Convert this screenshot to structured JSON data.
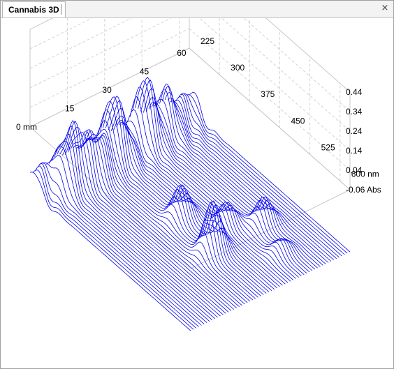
{
  "tab": {
    "title": "Cannabis 3D",
    "close_glyph": "×"
  },
  "chart_data": {
    "type": "area",
    "subtype": "3d-waterfall",
    "title": "",
    "xlabel_unit": "mm",
    "ylabel_unit": "nm",
    "zlabel_unit": "Abs",
    "x_ticks": [
      "0 mm",
      "15",
      "30",
      "45",
      "60"
    ],
    "y_ticks": [
      "225",
      "300",
      "375",
      "450",
      "525",
      "600 nm"
    ],
    "z_ticks": [
      "0.44",
      "0.34",
      "0.24",
      "0.14",
      "0.04",
      "-0.06 Abs"
    ],
    "xlim": [
      0,
      64
    ],
    "ylim": [
      200,
      600
    ],
    "zlim": [
      -0.06,
      0.44
    ],
    "grid": true,
    "line_color": "#0000ee",
    "trace_count": 60,
    "peaks": [
      {
        "x_mm": 8,
        "nm": 240,
        "abs": 0.17
      },
      {
        "x_mm": 12,
        "nm": 235,
        "abs": 0.2
      },
      {
        "x_mm": 16,
        "nm": 240,
        "abs": 0.16
      },
      {
        "x_mm": 20,
        "nm": 245,
        "abs": 0.15
      },
      {
        "x_mm": 24,
        "nm": 240,
        "abs": 0.11
      },
      {
        "x_mm": 29,
        "nm": 230,
        "abs": 0.24
      },
      {
        "x_mm": 33,
        "nm": 235,
        "abs": 0.12
      },
      {
        "x_mm": 42,
        "nm": 225,
        "abs": 0.19
      },
      {
        "x_mm": 45,
        "nm": 230,
        "abs": 0.12
      },
      {
        "x_mm": 52,
        "nm": 225,
        "abs": 0.13
      },
      {
        "x_mm": 28,
        "nm": 480,
        "abs": 0.16
      },
      {
        "x_mm": 30,
        "nm": 470,
        "abs": 0.1
      },
      {
        "x_mm": 31,
        "nm": 382,
        "abs": 0.09
      },
      {
        "x_mm": 30,
        "nm": 392,
        "abs": 0.07
      },
      {
        "x_mm": 40,
        "nm": 440,
        "abs": 0.1
      },
      {
        "x_mm": 50,
        "nm": 472,
        "abs": 0.12
      },
      {
        "x_mm": 46,
        "nm": 540,
        "abs": 0.06
      }
    ]
  }
}
